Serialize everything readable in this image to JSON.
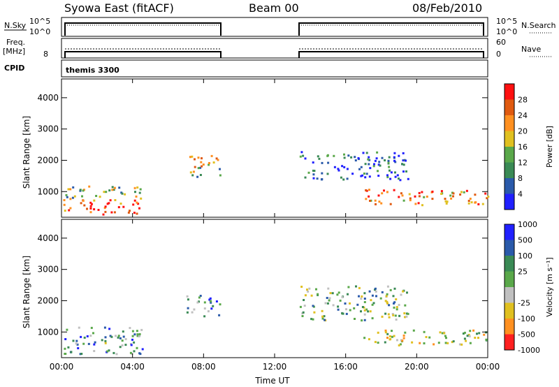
{
  "header": {
    "station": "Syowa East (fitACF)",
    "beam": "Beam 00",
    "date": "08/Feb/2010"
  },
  "noise_panel": {
    "left_label": "N.Sky",
    "left_ticks": [
      "10^5",
      "10^0"
    ],
    "right_label": "N.Search",
    "right_ticks": [
      "10^5",
      "10^0"
    ]
  },
  "freq_panel": {
    "left_label": "Freq.",
    "left_unit": "[MHz]",
    "left_ticks": [
      "8"
    ],
    "right_label": "Nave",
    "right_ticks": [
      "60",
      "0"
    ]
  },
  "cpid_panel": {
    "label": "CPID",
    "value": "themis 3300"
  },
  "colors": {
    "power": [
      "#2020ff",
      "#2a5aaa",
      "#3a8a55",
      "#5aa84a",
      "#e0c020",
      "#ff9020",
      "#e05a10",
      "#ff1010"
    ],
    "velocity": [
      "#2020ff",
      "#2a5aaa",
      "#3a8a55",
      "#5aa84a",
      "#c0c0c0",
      "#e0c020",
      "#ff9020",
      "#ff2020"
    ]
  },
  "chart_data": [
    {
      "type": "heatmap",
      "panel": "power",
      "xlabel": "Time UT",
      "ylabel": "Slant Range [km]",
      "x_ticks": [
        "00:00",
        "04:00",
        "08:00",
        "12:00",
        "16:00",
        "20:00",
        "00:00"
      ],
      "xlim_hours": [
        0,
        24
      ],
      "y_ticks": [
        1000,
        2000,
        3000,
        4000
      ],
      "ylim_km": [
        180,
        4600
      ],
      "colorbar": {
        "label": "Power [dB]",
        "ticks": [
          "4",
          "8",
          "12",
          "16",
          "20",
          "24",
          "28"
        ],
        "range": [
          0,
          30
        ]
      },
      "data_gap_ut_hours": [
        9.0,
        13.4
      ],
      "echo_regions": [
        {
          "t0": 0.1,
          "t1": 4.6,
          "r0": 300,
          "r1": 800,
          "level": 0.85
        },
        {
          "t0": 0.1,
          "t1": 4.6,
          "r0": 800,
          "r1": 1200,
          "level": 0.45
        },
        {
          "t0": 7.0,
          "t1": 8.9,
          "r0": 1500,
          "r1": 2200,
          "level": 0.5
        },
        {
          "t0": 13.4,
          "t1": 19.5,
          "r0": 1400,
          "r1": 2300,
          "level": 0.2
        },
        {
          "t0": 17.0,
          "t1": 24.0,
          "r0": 600,
          "r1": 1100,
          "level": 0.75
        }
      ]
    },
    {
      "type": "heatmap",
      "panel": "velocity",
      "xlabel": "Time UT",
      "ylabel": "Slant Range [km]",
      "x_ticks": [
        "00:00",
        "04:00",
        "08:00",
        "12:00",
        "16:00",
        "20:00",
        "00:00"
      ],
      "xlim_hours": [
        0,
        24
      ],
      "y_ticks": [
        1000,
        2000,
        3000,
        4000
      ],
      "ylim_km": [
        180,
        4600
      ],
      "colorbar": {
        "label": "Velocity [m s⁻¹]",
        "ticks": [
          "1000",
          "500",
          "100",
          "25",
          "-25",
          "-100",
          "-500",
          "-1000"
        ],
        "range": [
          -1000,
          1000
        ]
      },
      "data_gap_ut_hours": [
        9.0,
        13.4
      ],
      "echo_regions": [
        {
          "t0": 0.1,
          "t1": 4.6,
          "r0": 300,
          "r1": 1200,
          "level": 0.35
        },
        {
          "t0": 7.0,
          "t1": 8.9,
          "r0": 1500,
          "r1": 2200,
          "level": 0.3
        },
        {
          "t0": 13.4,
          "t1": 19.5,
          "r0": 1400,
          "r1": 2500,
          "level": 0.45
        },
        {
          "t0": 17.0,
          "t1": 24.0,
          "r0": 600,
          "r1": 1100,
          "level": 0.55
        }
      ]
    }
  ]
}
